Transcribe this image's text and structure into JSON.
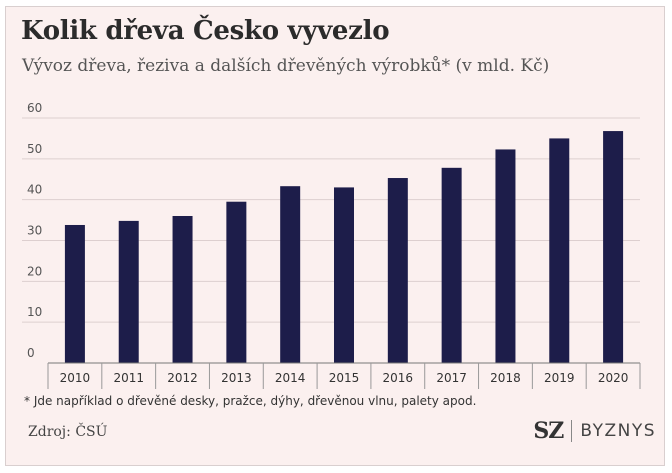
{
  "chart_data": {
    "type": "bar",
    "title": "Kolik dřeva Česko vyvezlo",
    "subtitle": "Vývoz dřeva, řeziva a dalších dřevěných výrobků* (v mld. Kč)",
    "categories": [
      "2010",
      "2011",
      "2012",
      "2013",
      "2014",
      "2015",
      "2016",
      "2017",
      "2018",
      "2019",
      "2020"
    ],
    "values": [
      33.8,
      34.8,
      36,
      39.5,
      43.3,
      43,
      45.3,
      47.8,
      52.3,
      55,
      56.8
    ],
    "ylim": [
      0,
      60
    ],
    "yticks": [
      "0",
      "10",
      "20",
      "30",
      "40",
      "50",
      "60"
    ],
    "grid": true,
    "bar_color": "#1d1d4a",
    "footnote": "* Jde například o dřevěné desky, pražce, dýhy, dřevěnou vlnu, palety apod.",
    "source": "Zdroj: ČSÚ"
  },
  "logo": {
    "mark": "SZ",
    "name": "BYZNYS"
  }
}
